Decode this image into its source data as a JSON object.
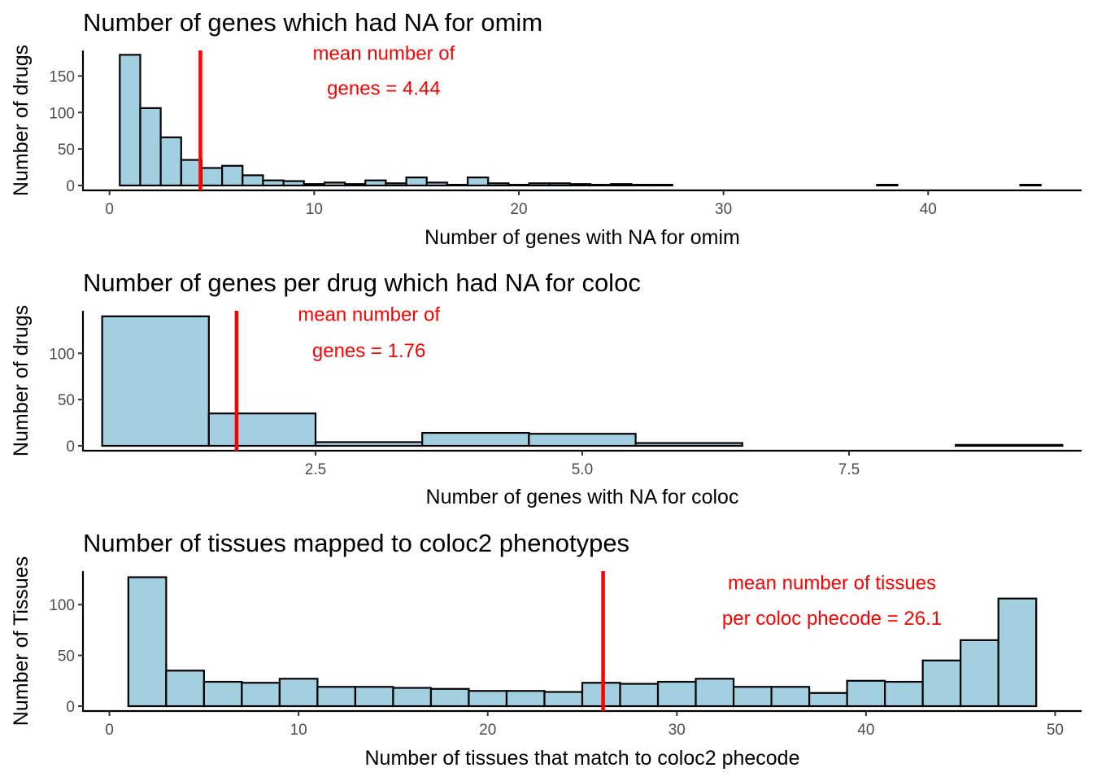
{
  "colors": {
    "bar_fill": "#a3d0e1",
    "bar_stroke": "#000000",
    "mean_line": "#ff0000",
    "annotation": "#ff0000",
    "tick_label": "#4d4d4d"
  },
  "chart_data": [
    {
      "type": "bar",
      "title": "Number of genes which had NA for omim",
      "xlabel": "Number of genes with NA for omim",
      "ylabel": "Number of drugs",
      "xlim": [
        -1.3,
        47.5
      ],
      "ylim": [
        0,
        185
      ],
      "x_ticks": [
        0,
        10,
        20,
        30,
        40
      ],
      "y_ticks": [
        0,
        50,
        100,
        150
      ],
      "grid": false,
      "bin_width": 1,
      "bin_centers": [
        1,
        2,
        3,
        4,
        5,
        6,
        7,
        8,
        9,
        10,
        11,
        12,
        13,
        14,
        15,
        16,
        17,
        18,
        19,
        20,
        21,
        22,
        23,
        24,
        25,
        26,
        27,
        28,
        29,
        30,
        31,
        32,
        33,
        34,
        35,
        36,
        37,
        38,
        39,
        40,
        41,
        42,
        43,
        44,
        45
      ],
      "values": [
        179,
        106,
        66,
        35,
        24,
        27,
        14,
        7,
        6,
        2,
        4,
        2,
        7,
        3,
        11,
        4,
        1,
        11,
        3,
        1,
        3,
        3,
        2,
        1,
        2,
        1,
        1,
        0,
        0,
        0,
        0,
        0,
        0,
        0,
        0,
        0,
        0,
        1,
        0,
        0,
        0,
        0,
        0,
        0,
        1
      ],
      "mean": 4.44,
      "annotation": [
        "mean number of",
        "genes = 4.44"
      ],
      "annotation_x": 13.4,
      "annotation_y": [
        172,
        124
      ]
    },
    {
      "type": "bar",
      "title": "Number of genes per drug which had NA for coloc",
      "xlabel": "Number of genes with NA for coloc",
      "ylabel": "Number of drugs",
      "xlim": [
        0.32,
        9.68
      ],
      "ylim": [
        0,
        146
      ],
      "x_ticks": [
        2.5,
        5.0,
        7.5
      ],
      "x_tick_labels": [
        "2.5",
        "5.0",
        "7.5"
      ],
      "y_ticks": [
        0,
        50,
        100
      ],
      "grid": false,
      "bin_width": 1,
      "bin_centers": [
        1,
        2,
        3,
        4,
        5,
        6,
        7,
        8,
        9
      ],
      "values": [
        140,
        35,
        4,
        14,
        13,
        3,
        0,
        0,
        1
      ],
      "mean": 1.76,
      "annotation": [
        "mean number of",
        "genes = 1.76"
      ],
      "annotation_x": 3.0,
      "annotation_y": [
        135,
        96
      ]
    },
    {
      "type": "bar",
      "title": "Number of tissues mapped to coloc2 phenotypes",
      "xlabel": "Number of tissues that match to coloc2 phecode",
      "ylabel": "Number of Tissues",
      "xlim": [
        -1.4,
        51.4
      ],
      "ylim": [
        0,
        133
      ],
      "x_ticks": [
        0,
        10,
        20,
        30,
        40,
        50
      ],
      "y_ticks": [
        0,
        50,
        100
      ],
      "grid": false,
      "bin_width": 2,
      "bin_centers": [
        2,
        4,
        6,
        8,
        10,
        12,
        14,
        16,
        18,
        20,
        22,
        24,
        26,
        28,
        30,
        32,
        34,
        36,
        38,
        40,
        42,
        44,
        46,
        48
      ],
      "values": [
        127,
        35,
        24,
        23,
        27,
        19,
        19,
        18,
        17,
        15,
        15,
        14,
        23,
        22,
        24,
        27,
        19,
        19,
        13,
        25,
        24,
        45,
        65,
        106
      ],
      "mean": 26.1,
      "annotation": [
        "mean number of tissues",
        "per coloc phecode = 26.1"
      ],
      "annotation_x": 38.2,
      "annotation_y": [
        115,
        80
      ]
    }
  ]
}
